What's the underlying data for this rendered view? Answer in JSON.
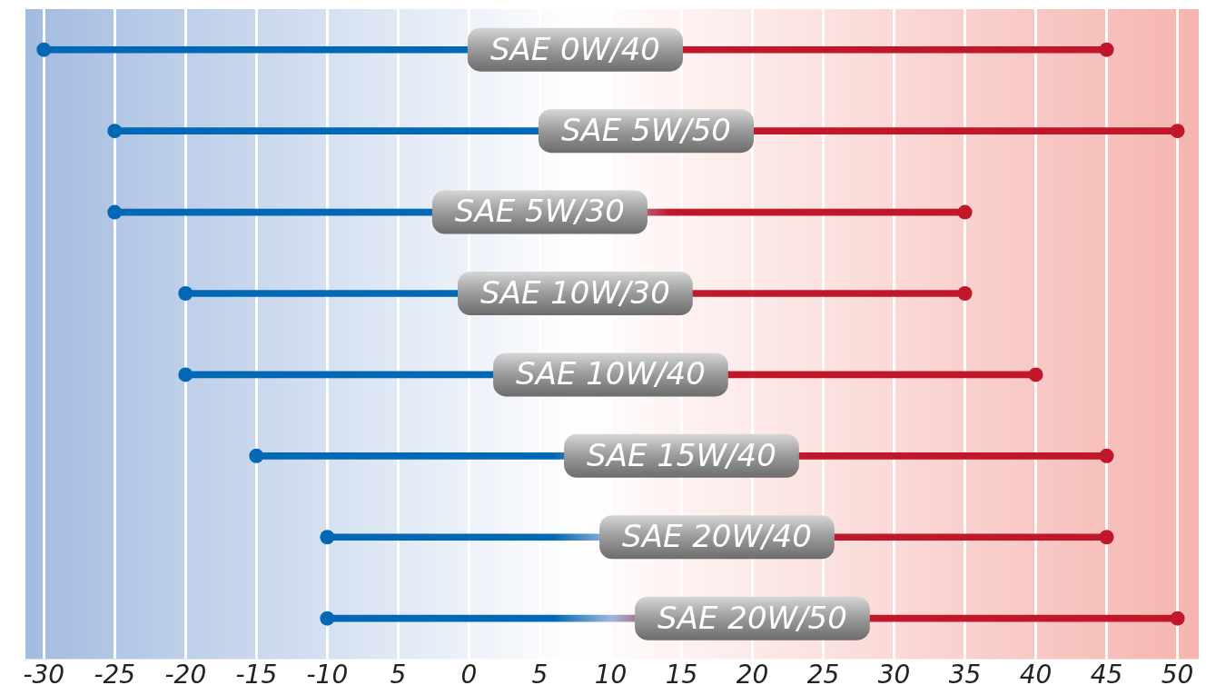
{
  "chart_data": {
    "type": "bar",
    "orientation": "horizontal",
    "categories": [
      "SAE 0W/40",
      "SAE 5W/50",
      "SAE 5W/30",
      "SAE 10W/30",
      "SAE 10W/40",
      "SAE 15W/40",
      "SAE 20W/40",
      "SAE 20W/50"
    ],
    "series": [
      {
        "color": "#0068b5",
        "base": [
          -30,
          -25,
          -25,
          -20,
          -20,
          -15,
          -10,
          -10
        ],
        "values": [
          75,
          75,
          60,
          55,
          60,
          60,
          55,
          60
        ]
      },
      {
        "type": "scatter",
        "color": "#0068b5",
        "values": [
          -30,
          -25,
          -25,
          -20,
          -20,
          -15,
          -10,
          -10
        ]
      },
      {
        "type": "scatter",
        "color": "#c0172b",
        "values": [
          45,
          50,
          35,
          35,
          40,
          45,
          45,
          50
        ]
      }
    ],
    "xlim": [
      -31.3,
      51.5
    ],
    "xticks": [
      -30,
      -25,
      -20,
      -15,
      -10,
      {
        "value": -5,
        "label": "5"
      },
      0,
      5,
      10,
      15,
      20,
      25,
      30,
      35,
      40,
      45,
      50
    ],
    "tick_labels": "x",
    "grid": "x",
    "legend": false,
    "marker": "circle"
  }
}
